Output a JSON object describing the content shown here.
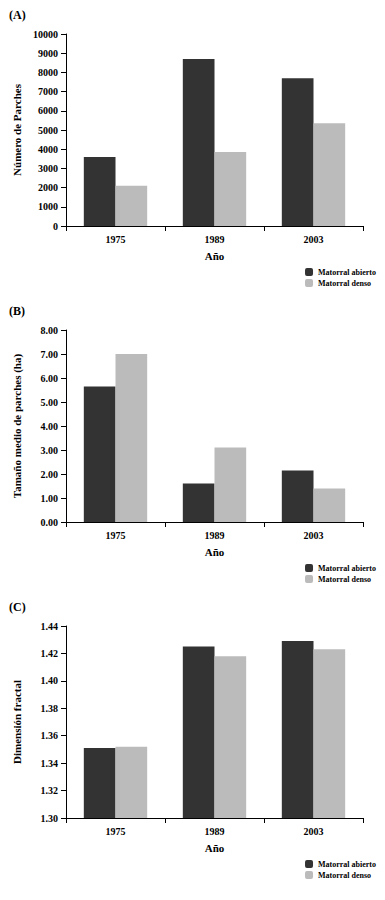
{
  "chart_data": [
    {
      "type": "bar",
      "title": "(A)",
      "x_label": "Año",
      "y_label": "Número de Parches",
      "categories": [
        "1975",
        "1989",
        "2003"
      ],
      "series": [
        {
          "name": "Matorral abierto",
          "color": "#333333",
          "values": [
            3600,
            8700,
            7700
          ]
        },
        {
          "name": "Matorral denso",
          "color": "#bbbbbb",
          "values": [
            2100,
            3850,
            5350
          ]
        }
      ],
      "ylim": [
        0,
        10000
      ],
      "yticks": [
        0,
        1000,
        2000,
        3000,
        4000,
        5000,
        6000,
        7000,
        8000,
        9000,
        10000
      ],
      "grid": false,
      "legend": "lower right"
    },
    {
      "type": "bar",
      "title": "(B)",
      "x_label": "Año",
      "y_label": "Tamaño medio de parches (ha)",
      "categories": [
        "1975",
        "1989",
        "2003"
      ],
      "series": [
        {
          "name": "Matorral abierto",
          "color": "#333333",
          "values": [
            5.65,
            1.6,
            2.15
          ]
        },
        {
          "name": "Matorral denso",
          "color": "#bbbbbb",
          "values": [
            7.0,
            3.1,
            1.4
          ]
        }
      ],
      "ylim": [
        0,
        8
      ],
      "yticks": [
        {
          "value": 0,
          "label": "0.00"
        },
        {
          "value": 1,
          "label": "1.00"
        },
        {
          "value": 2,
          "label": "2.00"
        },
        {
          "value": 3,
          "label": "3.00"
        },
        {
          "value": 4,
          "label": "4.00"
        },
        {
          "value": 5,
          "label": "5.00"
        },
        {
          "value": 6,
          "label": "6.00"
        },
        {
          "value": 7,
          "label": "7.00"
        },
        {
          "value": 8,
          "label": "8.00"
        }
      ],
      "grid": false,
      "legend": "lower right"
    },
    {
      "type": "bar",
      "title": "(C)",
      "x_label": "Año",
      "y_label": "Dimensión fractal",
      "categories": [
        "1975",
        "1989",
        "2003"
      ],
      "series": [
        {
          "name": "Matorral abierto",
          "color": "#333333",
          "values": [
            1.351,
            1.425,
            1.429
          ]
        },
        {
          "name": "Matorral denso",
          "color": "#bbbbbb",
          "values": [
            1.352,
            1.418,
            1.423
          ]
        }
      ],
      "ylim": [
        1.3,
        1.44
      ],
      "yticks": [
        {
          "value": 1.3,
          "label": "1.30"
        },
        1.32,
        1.34,
        1.36,
        1.38,
        {
          "value": 1.4,
          "label": "1.40"
        },
        1.42,
        1.44
      ],
      "grid": false,
      "legend": "lower right"
    }
  ]
}
